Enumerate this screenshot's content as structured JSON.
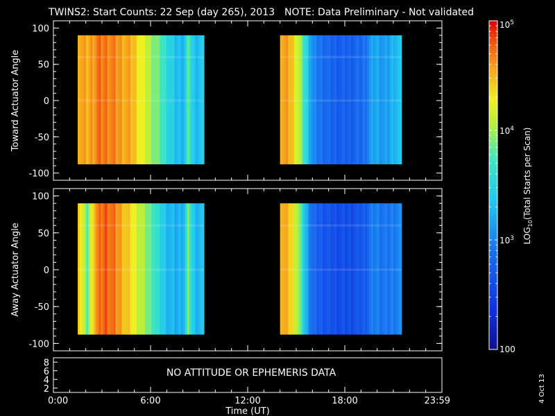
{
  "header": {
    "title": "TWINS2: Start Counts: 22 Sep (day 265), 2013",
    "note": "NOTE: Data Preliminary - Not validated",
    "note_color": "#ff2020"
  },
  "footer": {
    "date_stamp": "4 Oct 13"
  },
  "chart_data": [
    {
      "type": "heatmap",
      "panel": "toward",
      "ylabel": "Toward Actuator Angle",
      "ylim": [
        -110,
        110
      ],
      "yticks": [
        "100",
        "50",
        "0",
        "-50",
        "-100"
      ],
      "ytick_values": [
        100,
        50,
        0,
        -50,
        -100
      ],
      "xlim": [
        0,
        24
      ],
      "data_yrange": [
        -88,
        90
      ],
      "segments": [
        [
          1.5,
          9.3
        ],
        [
          14.0,
          21.5
        ]
      ],
      "colorbar_scale": "log10",
      "levels": [
        {
          "t": 1.5,
          "v": 4.6
        },
        {
          "t": 2.0,
          "v": 4.5
        },
        {
          "t": 2.7,
          "v": 4.7
        },
        {
          "t": 3.3,
          "v": 4.7
        },
        {
          "t": 4.0,
          "v": 4.6
        },
        {
          "t": 4.8,
          "v": 4.5
        },
        {
          "t": 5.5,
          "v": 4.2
        },
        {
          "t": 6.0,
          "v": 4.0
        },
        {
          "t": 6.5,
          "v": 3.8
        },
        {
          "t": 7.0,
          "v": 3.55
        },
        {
          "t": 7.5,
          "v": 3.3
        },
        {
          "t": 8.0,
          "v": 3.3
        },
        {
          "t": 8.3,
          "v": 3.8
        },
        {
          "t": 8.6,
          "v": 3.3
        },
        {
          "t": 9.0,
          "v": 3.35
        },
        {
          "t": 14.0,
          "v": 4.6
        },
        {
          "t": 14.6,
          "v": 4.5
        },
        {
          "t": 15.0,
          "v": 4.2
        },
        {
          "t": 15.5,
          "v": 3.6
        },
        {
          "t": 16.0,
          "v": 3.0
        },
        {
          "t": 17.0,
          "v": 2.8
        },
        {
          "t": 18.0,
          "v": 2.75
        },
        {
          "t": 19.0,
          "v": 2.85
        },
        {
          "t": 19.8,
          "v": 3.2
        },
        {
          "t": 20.5,
          "v": 3.1
        },
        {
          "t": 21.0,
          "v": 3.3
        }
      ]
    },
    {
      "type": "heatmap",
      "panel": "away",
      "ylabel": "Away Actuator Angle",
      "ylim": [
        -110,
        110
      ],
      "yticks": [
        "100",
        "50",
        "0",
        "-50",
        "-100"
      ],
      "ytick_values": [
        100,
        50,
        0,
        -50,
        -100
      ],
      "xlim": [
        0,
        24
      ],
      "data_yrange": [
        -88,
        90
      ],
      "segments": [
        [
          1.5,
          9.3
        ],
        [
          14.0,
          21.5
        ]
      ],
      "colorbar_scale": "log10",
      "levels": [
        {
          "t": 1.5,
          "v": 4.5
        },
        {
          "t": 2.0,
          "v": 3.8
        },
        {
          "t": 2.5,
          "v": 4.6
        },
        {
          "t": 3.2,
          "v": 4.8
        },
        {
          "t": 4.0,
          "v": 4.6
        },
        {
          "t": 4.8,
          "v": 4.3
        },
        {
          "t": 5.5,
          "v": 4.0
        },
        {
          "t": 6.0,
          "v": 3.8
        },
        {
          "t": 6.5,
          "v": 3.5
        },
        {
          "t": 7.0,
          "v": 3.3
        },
        {
          "t": 7.5,
          "v": 3.2
        },
        {
          "t": 8.0,
          "v": 3.3
        },
        {
          "t": 8.3,
          "v": 3.9
        },
        {
          "t": 8.6,
          "v": 3.3
        },
        {
          "t": 9.0,
          "v": 3.3
        },
        {
          "t": 14.0,
          "v": 4.6
        },
        {
          "t": 14.6,
          "v": 4.4
        },
        {
          "t": 15.0,
          "v": 4.1
        },
        {
          "t": 15.5,
          "v": 3.3
        },
        {
          "t": 16.0,
          "v": 2.8
        },
        {
          "t": 17.0,
          "v": 2.65
        },
        {
          "t": 18.0,
          "v": 2.6
        },
        {
          "t": 19.0,
          "v": 2.7
        },
        {
          "t": 19.8,
          "v": 3.0
        },
        {
          "t": 20.5,
          "v": 2.9
        },
        {
          "t": 21.0,
          "v": 3.0
        }
      ]
    }
  ],
  "ephemeris": {
    "message": "NO ATTITUDE OR EPHEMERIS DATA",
    "yticks": [
      "8",
      "6",
      "4",
      "2"
    ],
    "ytick_values": [
      8,
      6,
      4,
      2
    ],
    "ylim": [
      1,
      9
    ]
  },
  "x_axis": {
    "label": "Time (UT)",
    "ticks": [
      "0:00",
      "6:00",
      "12:00",
      "18:00",
      "23:59"
    ],
    "tick_values": [
      0,
      6,
      12,
      18,
      24
    ]
  },
  "colorbar": {
    "label_prefix": "LOG",
    "label_sub": "10",
    "label_suffix": "(Total Starts per Scan)",
    "range_log": [
      2,
      5
    ],
    "ticks": [
      {
        "value": 5,
        "base": "10",
        "exp": "5"
      },
      {
        "value": 4,
        "base": "10",
        "exp": "4"
      },
      {
        "value": 3,
        "base": "10",
        "exp": "3"
      },
      {
        "value": 2,
        "base": "100",
        "exp": ""
      }
    ]
  }
}
